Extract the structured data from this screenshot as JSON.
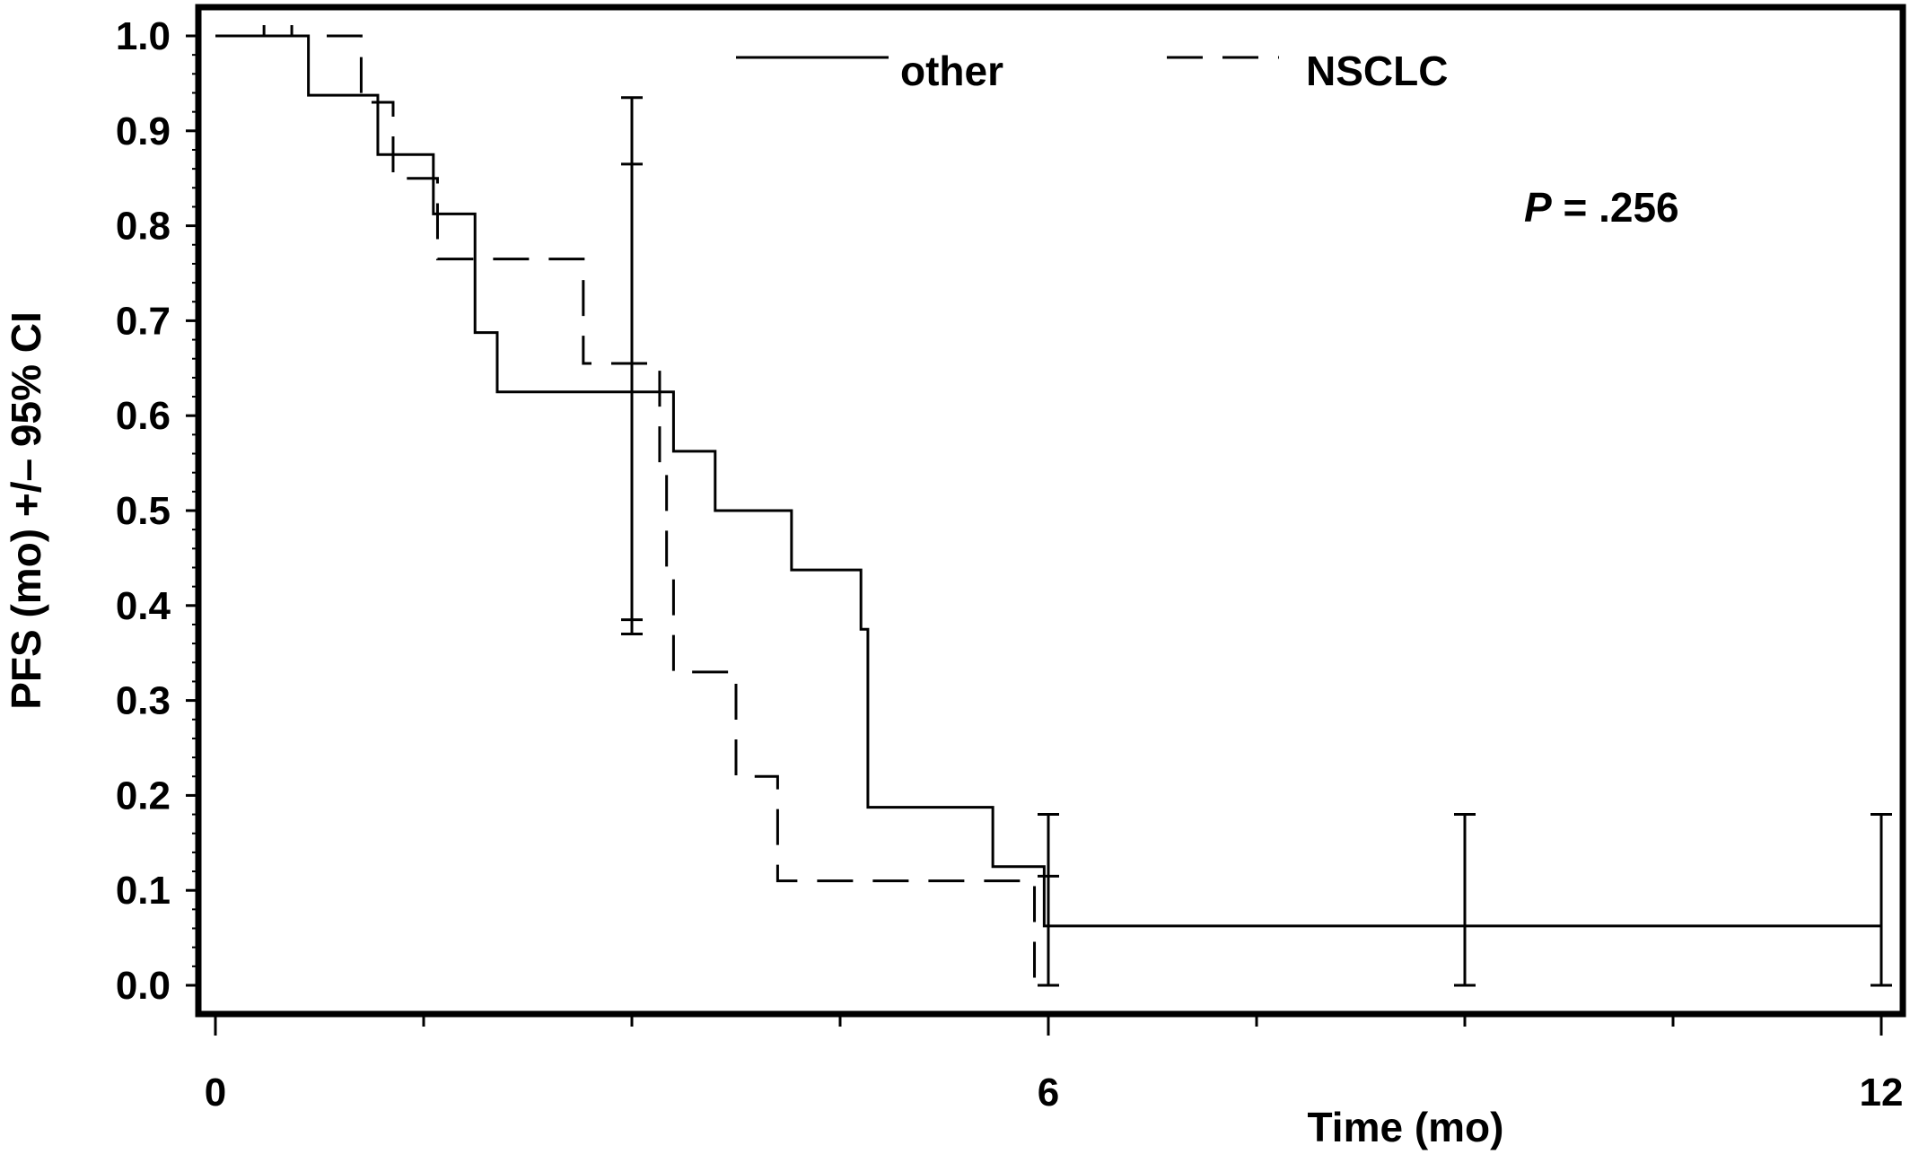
{
  "chart_data": {
    "type": "line",
    "title": "",
    "xlabel": "Time (mo)",
    "ylabel": "PFS (mo) +/– 95% CI",
    "xlim": [
      0,
      12
    ],
    "ylim": [
      0,
      1
    ],
    "x_ticks": [
      0,
      6,
      12
    ],
    "x_tick_labels": [
      "0",
      "6",
      "12"
    ],
    "y_ticks": [
      0.0,
      0.1,
      0.2,
      0.3,
      0.4,
      0.5,
      0.6,
      0.7,
      0.8,
      0.9,
      1.0
    ],
    "y_tick_labels": [
      "0.0",
      "0.1",
      "0.2",
      "0.3",
      "0.4",
      "0.5",
      "0.6",
      "0.7",
      "0.8",
      "0.9",
      "1.0"
    ],
    "grid": false,
    "legend_position": "top",
    "annotation": {
      "italic": "P",
      "rest": " = .256"
    },
    "series": [
      {
        "name": "other",
        "style": "solid",
        "color": "#000000",
        "steps": [
          [
            0.0,
            1.0
          ],
          [
            0.67,
            0.9375
          ],
          [
            1.17,
            0.875
          ],
          [
            1.57,
            0.8125
          ],
          [
            1.87,
            0.6875
          ],
          [
            2.03,
            0.625
          ],
          [
            3.3,
            0.5625
          ],
          [
            3.6,
            0.5
          ],
          [
            4.15,
            0.4375
          ],
          [
            4.65,
            0.375
          ],
          [
            4.7,
            0.1875
          ],
          [
            5.6,
            0.125
          ],
          [
            5.97,
            0.0625
          ],
          [
            12.0,
            0.0625
          ]
        ],
        "censor_times": [],
        "ci_bars": [
          {
            "x": 3.0,
            "lower": 0.37,
            "upper": 0.935
          },
          {
            "x": 6.0,
            "lower": 0.0,
            "upper": 0.18
          },
          {
            "x": 9.0,
            "lower": 0.0,
            "upper": 0.18
          },
          {
            "x": 12.0,
            "lower": 0.0,
            "upper": 0.18
          }
        ]
      },
      {
        "name": "NSCLC",
        "style": "dashed",
        "color": "#000000",
        "steps": [
          [
            0.0,
            1.0
          ],
          [
            1.05,
            0.93
          ],
          [
            1.28,
            0.85
          ],
          [
            1.6,
            0.765
          ],
          [
            2.65,
            0.655
          ],
          [
            3.2,
            0.55
          ],
          [
            3.25,
            0.44
          ],
          [
            3.3,
            0.33
          ],
          [
            3.75,
            0.22
          ],
          [
            4.05,
            0.11
          ],
          [
            5.9,
            0.0
          ]
        ],
        "censor_times": [
          0.35,
          0.55
        ],
        "ci_bars": [
          {
            "x": 3.0,
            "lower": 0.385,
            "upper": 0.865
          },
          {
            "x": 6.0,
            "lower": 0.0,
            "upper": 0.115
          }
        ]
      }
    ]
  }
}
